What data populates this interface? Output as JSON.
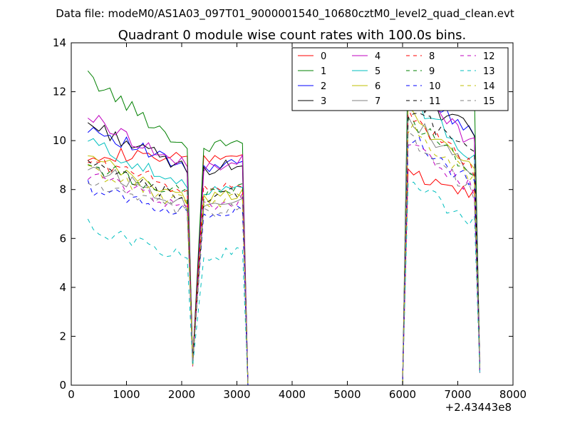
{
  "chart_data": {
    "type": "line",
    "suptitle": "Data file: modeM0/AS1A03_097T01_9000001540_10680cztM0_level2_quad_clean.evt",
    "title": "Quadrant 0 module wise count rates with 100.0s bins.",
    "xlabel": "",
    "ylabel": "",
    "x_offset_label": "+2.43443e8",
    "xlim": [
      0,
      8000
    ],
    "ylim": [
      0,
      14
    ],
    "xticks": [
      "0",
      "1000",
      "2000",
      "3000",
      "4000",
      "5000",
      "6000",
      "7000",
      "8000"
    ],
    "yticks": [
      "0",
      "2",
      "4",
      "6",
      "8",
      "10",
      "12",
      "14"
    ],
    "grid": false,
    "legend_position": "top-right",
    "legend_columns": 4,
    "series": [
      {
        "name": "0",
        "color": "#ff0000",
        "dash": "solid",
        "base": [
          9.5,
          9.2,
          8.6,
          7.8
        ]
      },
      {
        "name": "1",
        "color": "#008000",
        "dash": "solid",
        "base": [
          12.6,
          9.7,
          13.8,
          11.9
        ]
      },
      {
        "name": "2",
        "color": "#0000ff",
        "dash": "solid",
        "base": [
          10.6,
          8.8,
          12.4,
          10.4
        ]
      },
      {
        "name": "3",
        "color": "#000000",
        "dash": "solid",
        "base": [
          10.7,
          8.8,
          11.8,
          10.4
        ]
      },
      {
        "name": "4",
        "color": "#bf00bf",
        "dash": "solid",
        "base": [
          11.0,
          8.9,
          12.6,
          9.8
        ]
      },
      {
        "name": "5",
        "color": "#00bfbf",
        "dash": "solid",
        "base": [
          10.0,
          8.0,
          12.1,
          9.2
        ]
      },
      {
        "name": "6",
        "color": "#bfbf00",
        "dash": "solid",
        "base": [
          9.3,
          7.6,
          11.5,
          8.6
        ]
      },
      {
        "name": "7",
        "color": "#808080",
        "dash": "solid",
        "base": [
          9.0,
          7.4,
          11.2,
          8.5
        ]
      },
      {
        "name": "8",
        "color": "#ff0000",
        "dash": "dashed",
        "base": [
          9.2,
          8.0,
          11.3,
          8.8
        ]
      },
      {
        "name": "9",
        "color": "#008000",
        "dash": "dashed",
        "base": [
          9.0,
          7.8,
          11.1,
          8.7
        ]
      },
      {
        "name": "10",
        "color": "#0000ff",
        "dash": "dashed",
        "base": [
          8.1,
          7.0,
          10.3,
          8.1
        ]
      },
      {
        "name": "11",
        "color": "#000000",
        "dash": "dashed",
        "base": [
          9.0,
          7.6,
          11.4,
          9.6
        ]
      },
      {
        "name": "12",
        "color": "#bf00bf",
        "dash": "dashed",
        "base": [
          8.6,
          7.3,
          10.0,
          8.0
        ]
      },
      {
        "name": "13",
        "color": "#00bfbf",
        "dash": "dashed",
        "base": [
          6.5,
          5.2,
          8.5,
          6.6
        ]
      },
      {
        "name": "14",
        "color": "#bfbf00",
        "dash": "dashed",
        "base": [
          8.8,
          7.4,
          10.8,
          8.4
        ]
      },
      {
        "name": "15",
        "color": "#808080",
        "dash": "dashed",
        "base": [
          8.3,
          7.0,
          10.5,
          7.8
        ]
      }
    ],
    "segments": [
      {
        "x_start": 300,
        "x_end": 2100,
        "dip_x": 2200,
        "dip_y": 0.9
      },
      {
        "x_start": 2400,
        "x_end": 3100,
        "drop_x": 3200
      },
      {
        "x_start": 6000,
        "x_end": 7300,
        "drop_x": 7400
      }
    ],
    "zero_range": [
      3200,
      6000
    ]
  }
}
